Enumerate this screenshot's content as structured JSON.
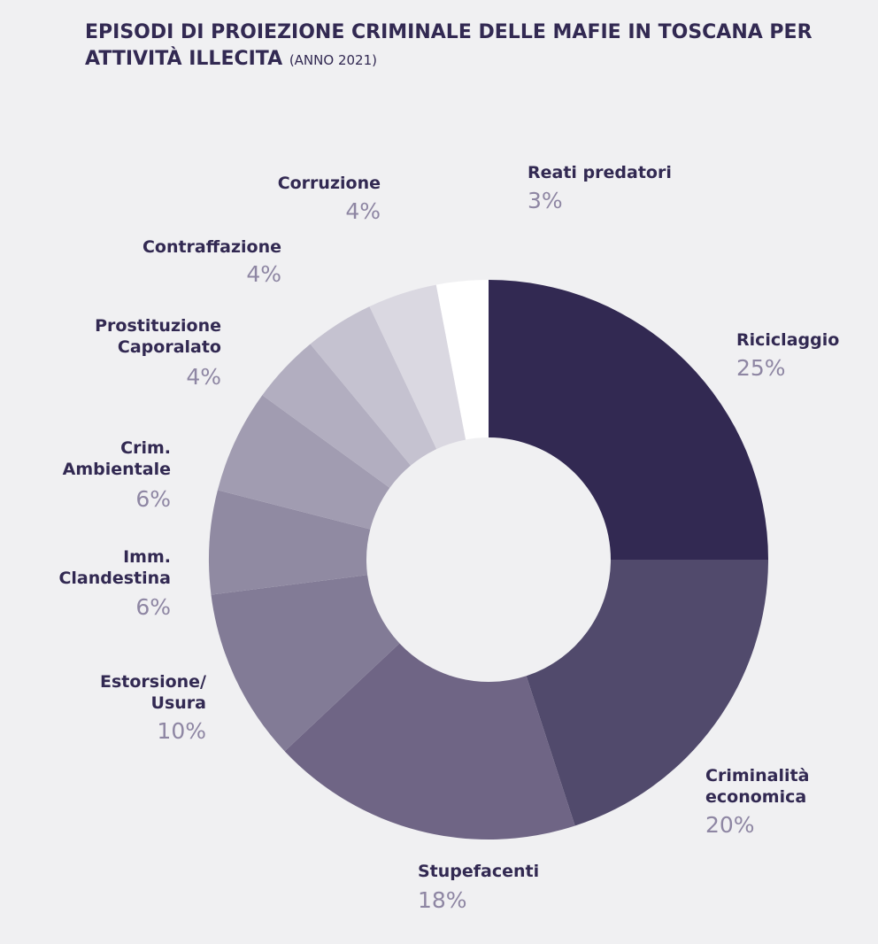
{
  "chart_data": {
    "type": "donut",
    "title": "EPISODI DI PROIEZIONE CRIMINALE DELLE MAFIE IN TOSCANA PER ATTIVITÀ ILLECITA",
    "subtitle": "(ANNO 2021)",
    "categories": [
      "Riciclaggio",
      "Criminalità\neconomica",
      "Stupefacenti",
      "Estorsione/\nUsura",
      "Imm.\nClandestina",
      "Crim.\nAmbientale",
      "Prostituzione\nCaporalato",
      "Contraffazione",
      "Corruzione",
      "Reati predatori"
    ],
    "values": [
      25,
      20,
      18,
      10,
      6,
      6,
      4,
      4,
      4,
      3
    ],
    "value_labels": [
      "25%",
      "20%",
      "18%",
      "10%",
      "6%",
      "6%",
      "4%",
      "4%",
      "4%",
      "3%"
    ],
    "colors": [
      "#322952",
      "#514a6c",
      "#6f6585",
      "#827b96",
      "#908aa2",
      "#a19cb1",
      "#b2aec0",
      "#c5c2d0",
      "#dad8e1",
      "#ffffff"
    ]
  }
}
